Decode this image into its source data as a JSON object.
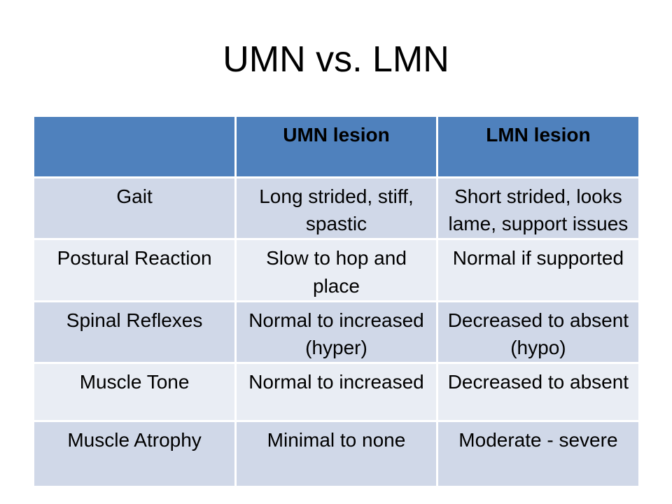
{
  "slide": {
    "title": "UMN vs. LMN",
    "background": "#FFFFFF"
  },
  "table": {
    "columns": [
      "",
      "UMN lesion",
      "LMN lesion"
    ],
    "rows": [
      {
        "label": "Gait",
        "umn": "Long strided, stiff, spastic",
        "lmn": "Short strided, looks lame, support issues"
      },
      {
        "label": "Postural Reaction",
        "umn": "Slow to hop and place",
        "lmn": "Normal if supported"
      },
      {
        "label": "Spinal Reflexes",
        "umn": "Normal to increased (hyper)",
        "lmn": "Decreased to absent (hypo)"
      },
      {
        "label": "Muscle Tone",
        "umn": "Normal to increased",
        "lmn": "Decreased to absent"
      },
      {
        "label": "Muscle Atrophy",
        "umn": "Minimal to none",
        "lmn": "Moderate - severe"
      }
    ],
    "colors": {
      "header_bg": "#4F81BD",
      "row_dark": "#D0D8E8",
      "row_light": "#E9EDF4",
      "border": "#FFFFFF",
      "text": "#000000"
    }
  }
}
